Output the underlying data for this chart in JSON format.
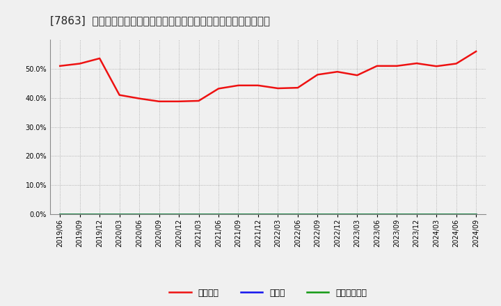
{
  "title": "[7863]  自己資本、のれん、繰延税金資産の総資産に対する比率の推移",
  "x_labels": [
    "2019/06",
    "2019/09",
    "2019/12",
    "2020/03",
    "2020/06",
    "2020/09",
    "2020/12",
    "2021/03",
    "2021/06",
    "2021/09",
    "2021/12",
    "2022/03",
    "2022/06",
    "2022/09",
    "2022/12",
    "2023/03",
    "2023/06",
    "2023/09",
    "2023/12",
    "2024/03",
    "2024/06",
    "2024/09"
  ],
  "jikoshihon": [
    0.51,
    0.518,
    0.536,
    0.41,
    0.398,
    0.388,
    0.388,
    0.39,
    0.432,
    0.443,
    0.443,
    0.433,
    0.435,
    0.48,
    0.49,
    0.478,
    0.51,
    0.51,
    0.519,
    0.509,
    0.518,
    0.56
  ],
  "noren": [
    0.0,
    0.0,
    0.0,
    0.0,
    0.0,
    0.0,
    0.0,
    0.0,
    0.0,
    0.0,
    0.0,
    0.0,
    0.0,
    0.0,
    0.0,
    0.0,
    0.0,
    0.0,
    0.0,
    0.0,
    0.0,
    0.0
  ],
  "kurinobe": [
    0.0,
    0.0,
    0.0,
    0.0,
    0.0,
    0.0,
    0.0,
    0.0,
    0.0,
    0.0,
    0.0,
    0.0,
    0.0,
    0.0,
    0.0,
    0.0,
    0.0,
    0.0,
    0.0,
    0.0,
    0.0,
    0.0
  ],
  "color_jikoshihon": "#EE1111",
  "color_noren": "#1111EE",
  "color_kurinobe": "#119911",
  "legend_label_0": "自己資本",
  "legend_label_1": "のれん",
  "legend_label_2": "繰延税金資産",
  "ylim": [
    0.0,
    0.6
  ],
  "yticks": [
    0.0,
    0.1,
    0.2,
    0.3,
    0.4,
    0.5
  ],
  "background_color": "#f0f0f0",
  "plot_bg_color": "#f0f0f0",
  "grid_color": "#999999",
  "title_fontsize": 11,
  "tick_fontsize": 7,
  "legend_fontsize": 9,
  "linewidth": 1.8
}
